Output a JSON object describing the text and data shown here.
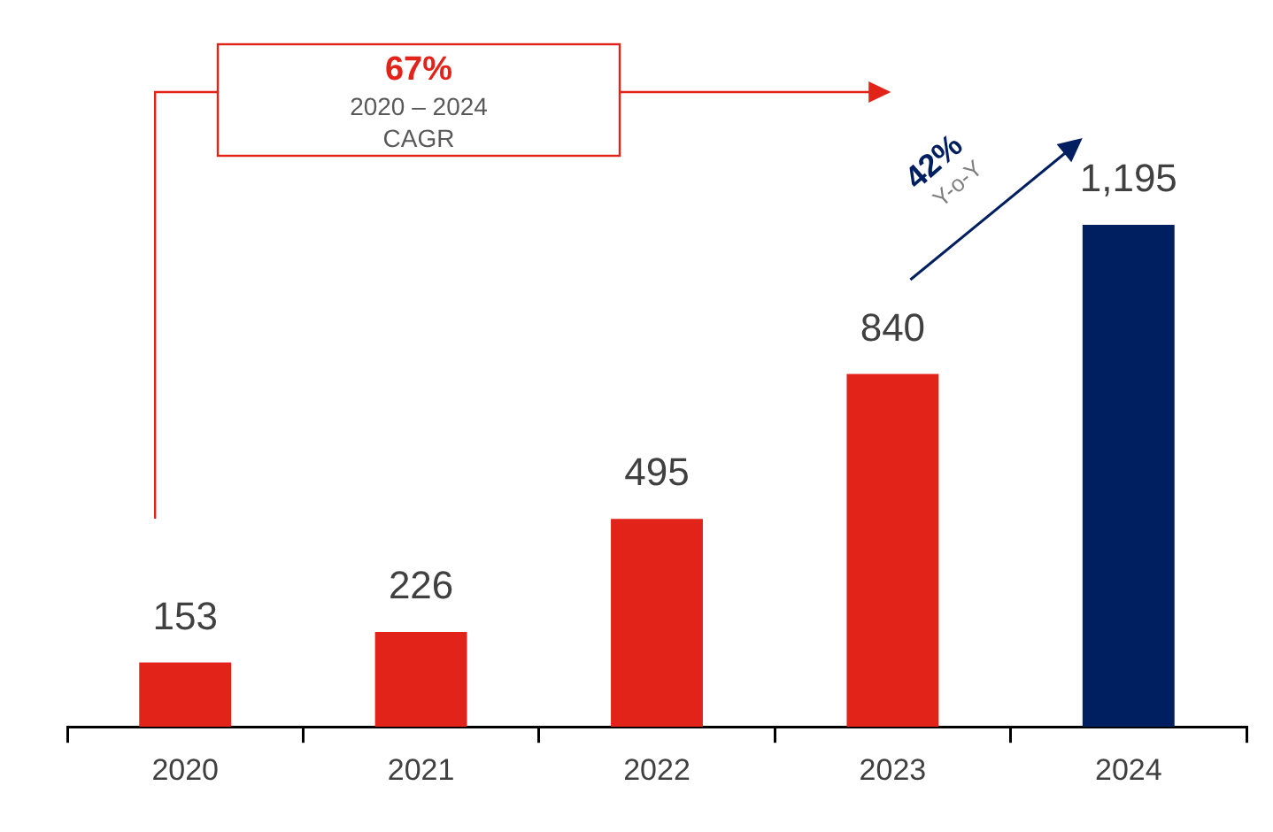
{
  "chart_data": {
    "type": "bar",
    "categories": [
      "2020",
      "2021",
      "2022",
      "2023",
      "2024"
    ],
    "values": [
      153,
      226,
      495,
      840,
      1195
    ],
    "colors": [
      "#e2231a",
      "#e2231a",
      "#e2231a",
      "#e2231a",
      "#001f60"
    ],
    "value_labels": [
      "153",
      "226",
      "495",
      "840",
      "1,195"
    ],
    "annotations": [
      "67%",
      "2020 – 2024",
      "CAGR",
      "42%",
      "Y-o-Y"
    ],
    "grid": false,
    "legend": false
  }
}
